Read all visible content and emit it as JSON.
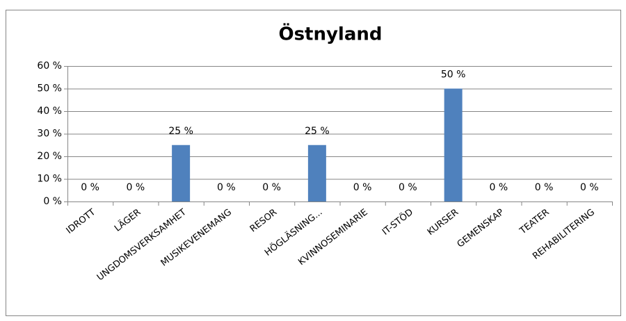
{
  "chart_data": {
    "type": "bar",
    "title": "Östnyland",
    "categories": [
      "IDROTT",
      "LÄGER",
      "UNGDOMSVERKSAMHET",
      "MUSIKEVENEMANG",
      "RESOR",
      "HÖGLÄSNING...",
      "KVINNOSEMINARIE",
      "IT-STÖD",
      "KURSER",
      "GEMENSKAP",
      "TEATER",
      "REHABILITERING"
    ],
    "values": [
      0,
      0,
      25,
      0,
      0,
      25,
      0,
      0,
      50,
      0,
      0,
      0
    ],
    "value_labels": [
      "0 %",
      "0 %",
      "25 %",
      "0 %",
      "0 %",
      "25 %",
      "0 %",
      "0 %",
      "50 %",
      "0 %",
      "0 %",
      "0 %"
    ],
    "color": "#4f81bd",
    "ylim": [
      0,
      60
    ],
    "yticks": [
      {
        "value": 0,
        "label": "0 %"
      },
      {
        "value": 10,
        "label": "10 %"
      },
      {
        "value": 20,
        "label": "20 %"
      },
      {
        "value": 30,
        "label": "30 %"
      },
      {
        "value": 40,
        "label": "40 %"
      },
      {
        "value": 50,
        "label": "50 %"
      },
      {
        "value": 60,
        "label": "60 %"
      }
    ],
    "grid": true
  }
}
